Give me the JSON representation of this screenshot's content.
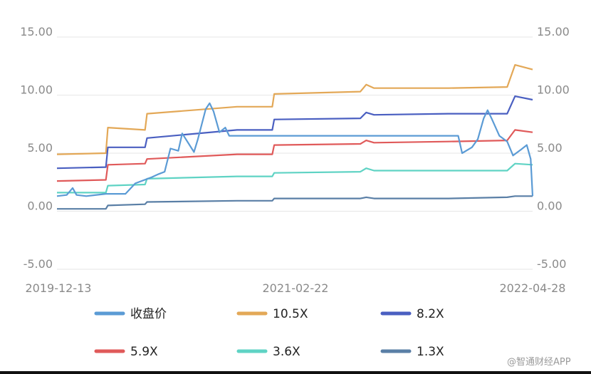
{
  "chart_data": {
    "type": "line",
    "xlabels": [
      "2019-12-13",
      "2021-02-22",
      "2022-04-28"
    ],
    "ylim": [
      -5,
      15
    ],
    "yticks": [
      "15.00",
      "10.00",
      "5.00",
      "0.00",
      "-5.00"
    ],
    "grid": true,
    "legend_position": "bottom",
    "series": [
      {
        "name": "收盘价",
        "color": "#5b9bd5",
        "points": [
          [
            0,
            1.3
          ],
          [
            0.05,
            1.4
          ],
          [
            0.08,
            2.0
          ],
          [
            0.1,
            1.4
          ],
          [
            0.15,
            1.3
          ],
          [
            0.25,
            1.5
          ],
          [
            0.35,
            1.5
          ],
          [
            0.4,
            2.4
          ],
          [
            0.48,
            2.9
          ],
          [
            0.52,
            3.2
          ],
          [
            0.55,
            3.4
          ],
          [
            0.58,
            5.4
          ],
          [
            0.62,
            5.2
          ],
          [
            0.64,
            6.7
          ],
          [
            0.7,
            5.1
          ],
          [
            0.72,
            6.2
          ],
          [
            0.76,
            8.8
          ],
          [
            0.78,
            9.3
          ],
          [
            0.8,
            8.6
          ],
          [
            0.83,
            6.8
          ],
          [
            0.86,
            7.2
          ],
          [
            0.88,
            6.5
          ],
          [
            0.9,
            6.5
          ],
          [
            1.4,
            6.5
          ],
          [
            2.05,
            6.5
          ],
          [
            2.07,
            5.0
          ],
          [
            2.12,
            5.5
          ],
          [
            2.15,
            6.2
          ],
          [
            2.18,
            8.0
          ],
          [
            2.2,
            8.7
          ],
          [
            2.22,
            8.0
          ],
          [
            2.26,
            6.5
          ],
          [
            2.3,
            6.0
          ],
          [
            2.33,
            4.8
          ],
          [
            2.37,
            5.3
          ],
          [
            2.4,
            5.7
          ],
          [
            2.42,
            4.5
          ],
          [
            2.43,
            1.3
          ]
        ]
      },
      {
        "name": "10.5X",
        "color": "#e3a857",
        "points": [
          [
            0,
            4.9
          ],
          [
            0.25,
            5.0
          ],
          [
            0.26,
            7.2
          ],
          [
            0.45,
            7.0
          ],
          [
            0.46,
            8.4
          ],
          [
            0.92,
            9.0
          ],
          [
            1.1,
            9.0
          ],
          [
            1.11,
            10.1
          ],
          [
            1.55,
            10.3
          ],
          [
            1.58,
            10.9
          ],
          [
            1.62,
            10.6
          ],
          [
            2.0,
            10.6
          ],
          [
            2.3,
            10.7
          ],
          [
            2.34,
            12.6
          ],
          [
            2.43,
            12.2
          ]
        ]
      },
      {
        "name": "8.2X",
        "color": "#4a5fc1",
        "points": [
          [
            0,
            3.7
          ],
          [
            0.25,
            3.8
          ],
          [
            0.26,
            5.5
          ],
          [
            0.45,
            5.5
          ],
          [
            0.46,
            6.3
          ],
          [
            0.92,
            7.0
          ],
          [
            1.1,
            7.0
          ],
          [
            1.11,
            7.9
          ],
          [
            1.55,
            8.0
          ],
          [
            1.58,
            8.5
          ],
          [
            1.62,
            8.3
          ],
          [
            2.0,
            8.4
          ],
          [
            2.3,
            8.4
          ],
          [
            2.34,
            9.9
          ],
          [
            2.43,
            9.6
          ]
        ]
      },
      {
        "name": "5.9X",
        "color": "#e05a5a",
        "points": [
          [
            0,
            2.6
          ],
          [
            0.25,
            2.7
          ],
          [
            0.26,
            4.0
          ],
          [
            0.45,
            4.1
          ],
          [
            0.46,
            4.5
          ],
          [
            0.92,
            4.9
          ],
          [
            1.1,
            4.9
          ],
          [
            1.11,
            5.7
          ],
          [
            1.55,
            5.8
          ],
          [
            1.58,
            6.1
          ],
          [
            1.62,
            5.9
          ],
          [
            2.0,
            6.0
          ],
          [
            2.3,
            6.1
          ],
          [
            2.34,
            7.0
          ],
          [
            2.43,
            6.8
          ]
        ]
      },
      {
        "name": "3.6X",
        "color": "#5fd3c4",
        "points": [
          [
            0,
            1.6
          ],
          [
            0.25,
            1.6
          ],
          [
            0.26,
            2.2
          ],
          [
            0.45,
            2.3
          ],
          [
            0.46,
            2.8
          ],
          [
            0.92,
            3.0
          ],
          [
            1.1,
            3.0
          ],
          [
            1.11,
            3.3
          ],
          [
            1.55,
            3.4
          ],
          [
            1.58,
            3.7
          ],
          [
            1.62,
            3.5
          ],
          [
            2.0,
            3.5
          ],
          [
            2.3,
            3.5
          ],
          [
            2.34,
            4.1
          ],
          [
            2.43,
            4.0
          ]
        ]
      },
      {
        "name": "1.3X",
        "color": "#5a7fa6",
        "points": [
          [
            0,
            0.2
          ],
          [
            0.25,
            0.2
          ],
          [
            0.26,
            0.5
          ],
          [
            0.45,
            0.6
          ],
          [
            0.46,
            0.8
          ],
          [
            0.92,
            0.9
          ],
          [
            1.1,
            0.9
          ],
          [
            1.11,
            1.1
          ],
          [
            1.55,
            1.1
          ],
          [
            1.58,
            1.2
          ],
          [
            1.62,
            1.1
          ],
          [
            2.0,
            1.1
          ],
          [
            2.3,
            1.2
          ],
          [
            2.34,
            1.3
          ],
          [
            2.43,
            1.3
          ]
        ]
      }
    ]
  },
  "watermark": "@智通财经APP"
}
